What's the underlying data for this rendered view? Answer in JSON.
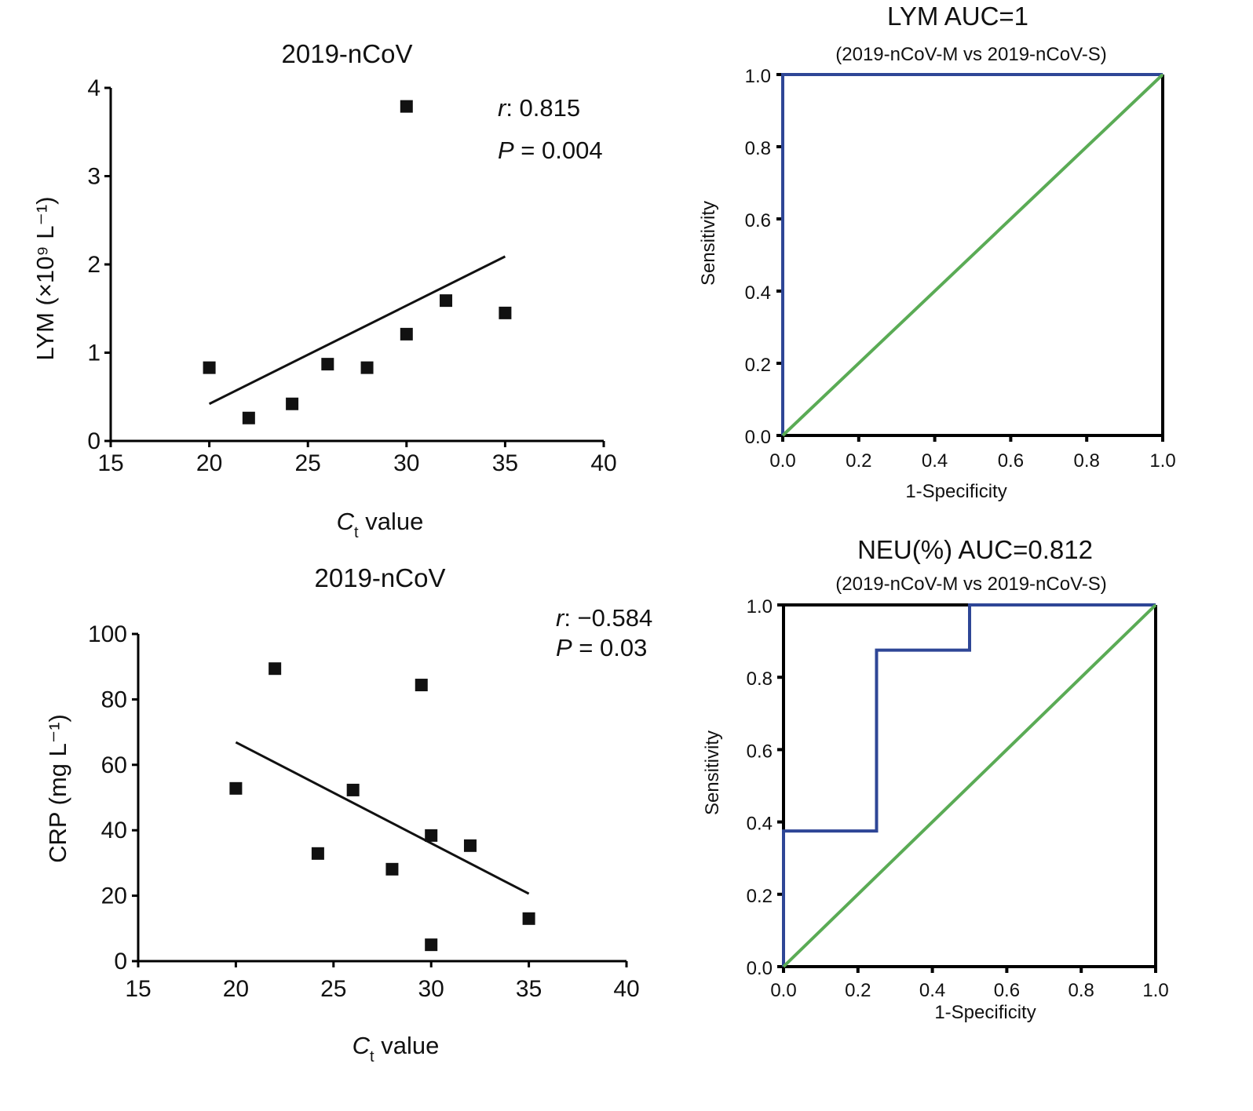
{
  "chart_data": [
    {
      "type": "scatter",
      "title": "2019-nCoV",
      "xlabel_main": "C",
      "xlabel_sub": "t",
      "xlabel_rest": " value",
      "ylabel": "LYM (×10⁹ L⁻¹)",
      "xlim": [
        15,
        40
      ],
      "ylim": [
        0,
        4
      ],
      "xticks": [
        "15",
        "20",
        "25",
        "30",
        "35",
        "40"
      ],
      "yticks": [
        "0",
        "1",
        "2",
        "3",
        "4"
      ],
      "points": [
        [
          20,
          0.83
        ],
        [
          22,
          0.26
        ],
        [
          24.2,
          0.42
        ],
        [
          26,
          0.87
        ],
        [
          28,
          0.83
        ],
        [
          30,
          3.79
        ],
        [
          30,
          1.21
        ],
        [
          32,
          1.59
        ],
        [
          35,
          1.45
        ]
      ],
      "fit_line": [
        [
          20,
          0.42
        ],
        [
          35,
          2.09
        ]
      ],
      "stat_r_label": "r",
      "stat_r_value": ":  0.815",
      "stat_p_label": "P",
      "stat_p_value": " = 0.004"
    },
    {
      "type": "line",
      "title": "LYM  AUC=1",
      "subtitle": "(2019-nCoV-M vs 2019-nCoV-S)",
      "xlabel": "1-Specificity",
      "ylabel": "Sensitivity",
      "xlim": [
        0,
        1
      ],
      "ylim": [
        0,
        1
      ],
      "xticks": [
        "0.0",
        "0.2",
        "0.4",
        "0.6",
        "0.8",
        "1.0"
      ],
      "yticks": [
        "0.0",
        "0.2",
        "0.4",
        "0.6",
        "0.8",
        "1.0"
      ],
      "series": [
        {
          "values": [
            [
              0,
              0
            ],
            [
              0,
              1
            ],
            [
              1,
              1
            ]
          ],
          "color": "#2e4696"
        },
        {
          "values": [
            [
              0,
              0
            ],
            [
              1,
              1
            ]
          ],
          "color": "#5aab55"
        }
      ]
    },
    {
      "type": "scatter",
      "title": "2019-nCoV",
      "xlabel_main": "C",
      "xlabel_sub": "t",
      "xlabel_rest": " value",
      "ylabel": "CRP (mg L⁻¹)",
      "xlim": [
        15,
        40
      ],
      "ylim": [
        0,
        100
      ],
      "xticks": [
        "15",
        "20",
        "25",
        "30",
        "35",
        "40"
      ],
      "yticks": [
        "0",
        "20",
        "40",
        "60",
        "80",
        "100"
      ],
      "points": [
        [
          20,
          52.8
        ],
        [
          22,
          89.4
        ],
        [
          24.2,
          32.9
        ],
        [
          26,
          52.3
        ],
        [
          28,
          28.1
        ],
        [
          29.5,
          84.4
        ],
        [
          30,
          38.4
        ],
        [
          30,
          5.0
        ],
        [
          32,
          35.3
        ],
        [
          35,
          13.0
        ]
      ],
      "fit_line": [
        [
          20,
          66.9
        ],
        [
          35,
          20.6
        ]
      ],
      "stat_r_label": "r",
      "stat_r_value": ": −0.584",
      "stat_p_label": "P",
      "stat_p_value": " = 0.03"
    },
    {
      "type": "line",
      "title": "NEU(%)  AUC=0.812",
      "subtitle": "(2019-nCoV-M vs 2019-nCoV-S)",
      "xlabel": "1-Specificity",
      "ylabel": "Sensitivity",
      "xlim": [
        0,
        1
      ],
      "ylim": [
        0,
        1
      ],
      "xticks": [
        "0.0",
        "0.2",
        "0.4",
        "0.6",
        "0.8",
        "1.0"
      ],
      "yticks": [
        "0.0",
        "0.2",
        "0.4",
        "0.6",
        "0.8",
        "1.0"
      ],
      "series": [
        {
          "values": [
            [
              0,
              0
            ],
            [
              0,
              0.375
            ],
            [
              0.25,
              0.375
            ],
            [
              0.25,
              0.875
            ],
            [
              0.5,
              0.875
            ],
            [
              0.5,
              1
            ],
            [
              1,
              1
            ]
          ],
          "color": "#2e4696"
        },
        {
          "values": [
            [
              0,
              0
            ],
            [
              1,
              1
            ]
          ],
          "color": "#5aab55"
        }
      ]
    }
  ]
}
